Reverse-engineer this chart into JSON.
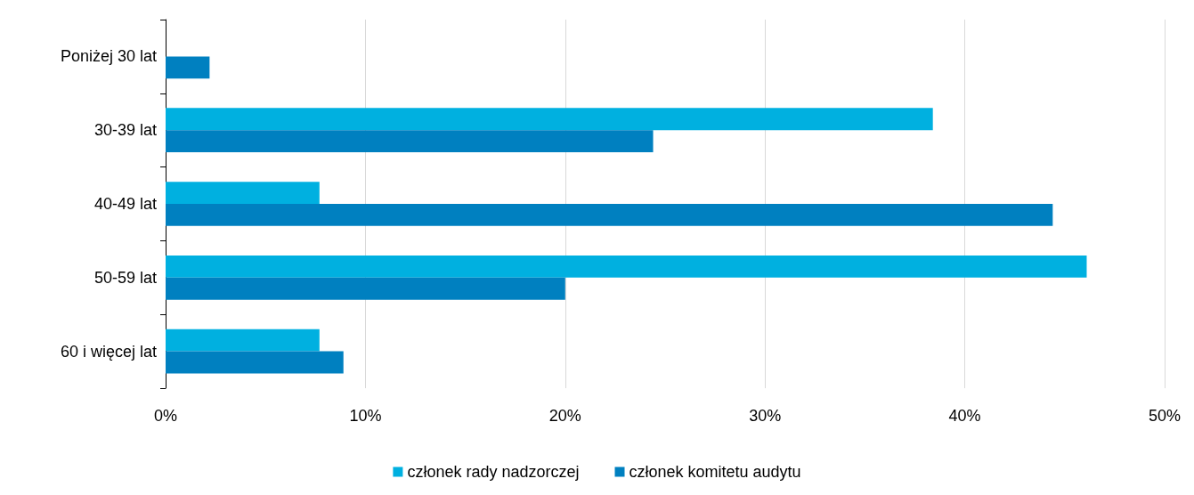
{
  "chart_data": {
    "type": "bar",
    "orientation": "horizontal",
    "categories": [
      "Poniżej 30 lat",
      "30-39 lat",
      "40-49 lat",
      "50-59 lat",
      "60 i więcej lat"
    ],
    "series": [
      {
        "name": "członek rady nadzorczej",
        "color": "#00b0e0",
        "values": [
          0,
          38.4,
          7.7,
          46.1,
          7.7
        ]
      },
      {
        "name": "członek komitetu audytu",
        "color": "#0080c0",
        "values": [
          2.2,
          24.4,
          44.4,
          20.0,
          8.9
        ]
      }
    ],
    "xlim": [
      0,
      50
    ],
    "xticks": [
      {
        "value": 0,
        "label": "0%"
      },
      {
        "value": 10,
        "label": "10%"
      },
      {
        "value": 20,
        "label": "20%"
      },
      {
        "value": 30,
        "label": "30%"
      },
      {
        "value": 40,
        "label": "40%"
      },
      {
        "value": 50,
        "label": "50%"
      }
    ],
    "grid": "x",
    "legend": "bottom"
  }
}
